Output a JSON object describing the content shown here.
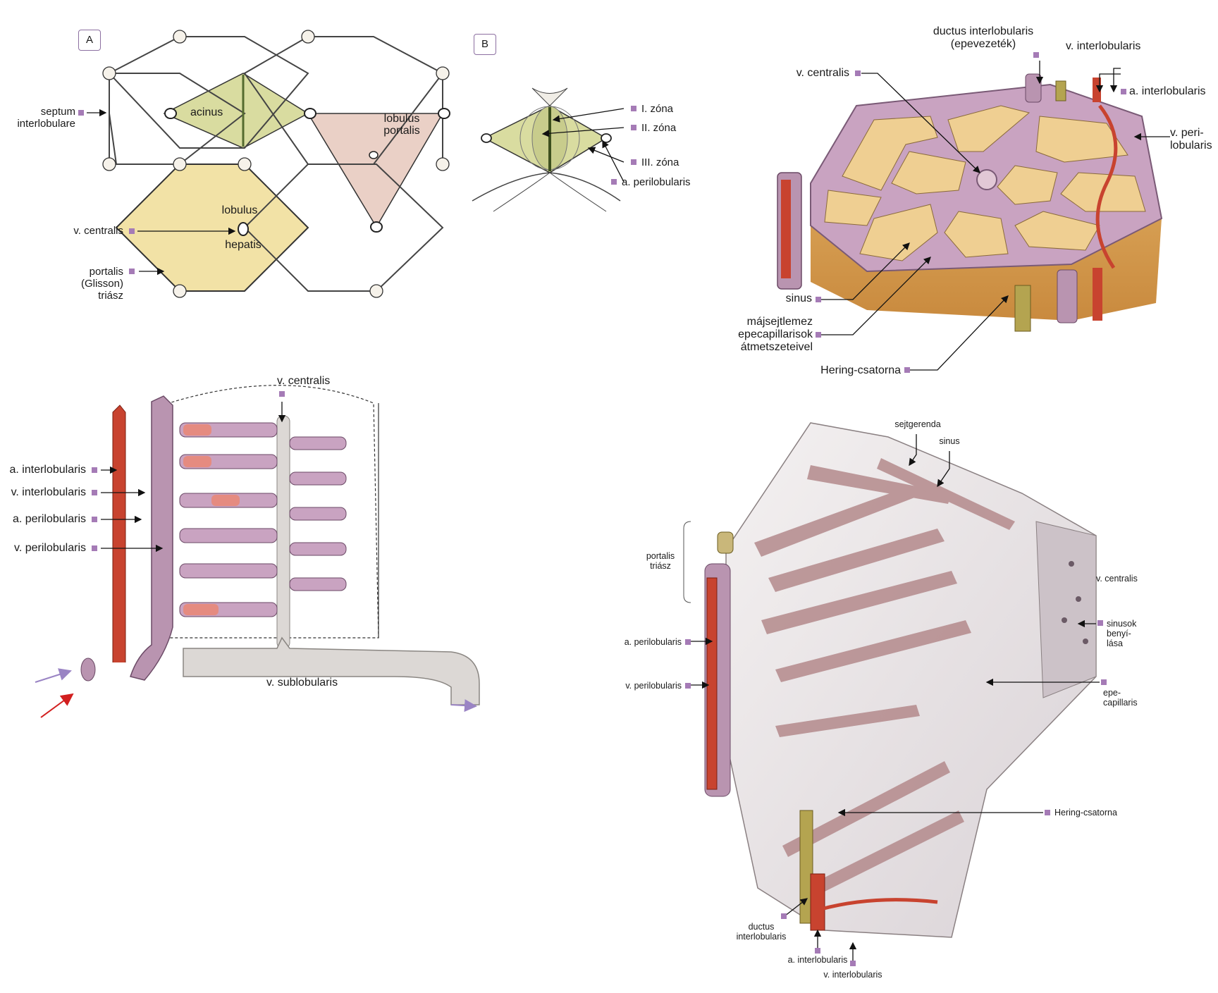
{
  "colors": {
    "label_marker": "#a57bb6",
    "artery": "#c8432f",
    "vein": "#b08aa6",
    "lobule_fill": "#f2e2a6",
    "acinus_fill": "#d9dca0",
    "portal_fill": "#ead0c6",
    "plate_fill": "#efcf92",
    "sinus_fill": "#c9a3c1",
    "bile_duct": "#b4a450"
  },
  "panel_a": {
    "tag": "A",
    "labels": {
      "septum": "septum\ninterlobulare",
      "acinus": "acinus",
      "lobulus_portalis": "lobulus\nportalis",
      "lobulus_hepatis_1": "lobulus",
      "lobulus_hepatis_2": "hepatis",
      "v_centralis": "v. centralis",
      "portalis_triad": "portalis\n(Glisson)\ntriász"
    }
  },
  "panel_b": {
    "tag": "B",
    "labels": {
      "zone1": "I. zóna",
      "zone2": "II. zóna",
      "zone3": "III. zóna",
      "a_perilobularis": "a. perilobularis"
    }
  },
  "disc_diagram": {
    "labels": {
      "v_centralis": "v. centralis",
      "ductus": "ductus interlobularis\n(epevezeték)",
      "v_interlobularis": "v. interlobularis",
      "a_interlobularis": "a. interlobularis",
      "v_perilobularis": "v. peri-\nlobularis",
      "sinus": "sinus",
      "majsejtlemez": "májsejtlemez\nepecapillarisok\nátmetszeteivel",
      "hering": "Hering-csatorna"
    }
  },
  "vessel_diagram": {
    "labels": {
      "v_centralis": "v. centralis",
      "a_interlobularis": "a. interlobularis",
      "v_interlobularis": "v. interlobularis",
      "a_perilobularis": "a. perilobularis",
      "v_perilobularis": "v. perilobularis",
      "v_sublobularis": "v. sublobularis"
    }
  },
  "block_diagram": {
    "labels": {
      "sejtgerenda": "sejtgerenda",
      "sinus": "sinus",
      "portalis_triasz": "portalis\ntriász",
      "v_centralis": "v. centralis",
      "sinusok": "sinusok\nbenyí-\nlása",
      "a_perilobularis": "a. perilobularis",
      "v_perilobularis": "v. perilobularis",
      "epecapillaris": "epe-\ncapillaris",
      "hering": "Hering-csatorna",
      "ductus": "ductus\ninterlobularis",
      "a_interlobularis": "a. interlobularis",
      "v_interlobularis": "v. interlobularis"
    }
  }
}
